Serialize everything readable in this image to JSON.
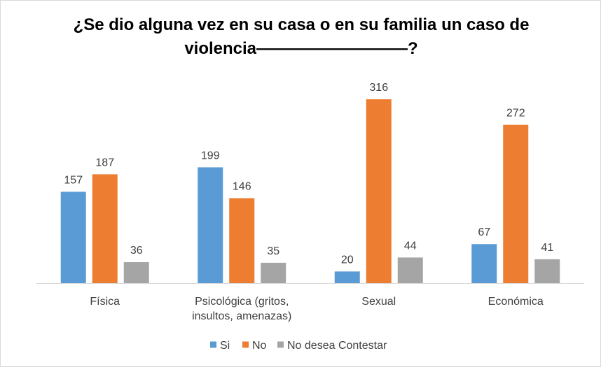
{
  "chart_data": {
    "type": "bar",
    "title_lines": [
      "¿Se dio alguna vez en su casa o en su familia un caso de",
      "violencia—————————?"
    ],
    "categories": [
      [
        "Física"
      ],
      [
        "Psicológica (gritos,",
        "insultos, amenazas)"
      ],
      [
        "Sexual"
      ],
      [
        "Económica"
      ]
    ],
    "series": [
      {
        "name": "Si",
        "color": "#5b9bd5",
        "values": [
          157,
          199,
          20,
          67
        ]
      },
      {
        "name": "No",
        "color": "#ed7d31",
        "values": [
          187,
          146,
          316,
          272
        ]
      },
      {
        "name": "No desea Contestar",
        "color": "#a5a5a5",
        "values": [
          36,
          35,
          44,
          41
        ]
      }
    ],
    "ylim": [
      0,
      316
    ],
    "grid": false,
    "legend_position": "bottom"
  }
}
